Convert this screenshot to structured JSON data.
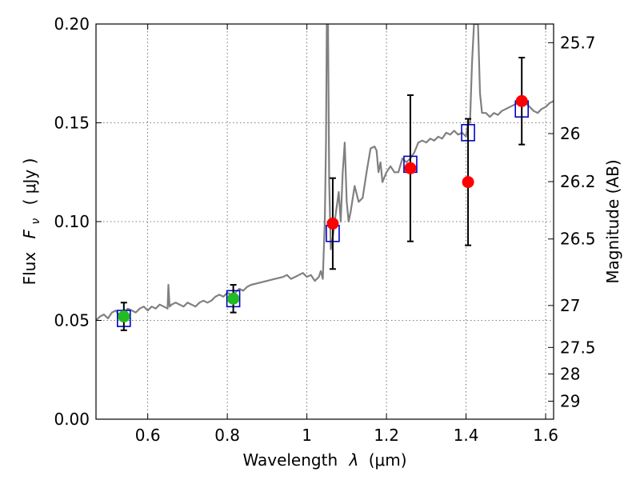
{
  "chart_data": {
    "type": "scatter",
    "title": "",
    "xlabel": "Wavelength  λ (μm)",
    "ylabel": "Flux  F_ν  ( μJy )",
    "ylabel_parts": {
      "prefix": "Flux",
      "symbol": "F",
      "subscript": "ν",
      "unit": "( μJy )"
    },
    "xlabel_parts": {
      "prefix": "Wavelength",
      "symbol": "λ",
      "unit": "(μm)"
    },
    "y2label": "Magnitude (AB)",
    "xlim": [
      0.47,
      1.62
    ],
    "ylim": [
      0.0,
      0.2
    ],
    "grid": true,
    "x_ticks": [
      {
        "value": 0.6,
        "label": "0.6"
      },
      {
        "value": 0.8,
        "label": "0.8"
      },
      {
        "value": 1.0,
        "label": "1"
      },
      {
        "value": 1.2,
        "label": "1.2"
      },
      {
        "value": 1.4,
        "label": "1.4"
      },
      {
        "value": 1.6,
        "label": "1.6"
      }
    ],
    "y_ticks": [
      {
        "value": 0.0,
        "label": "0.00"
      },
      {
        "value": 0.05,
        "label": "0.05"
      },
      {
        "value": 0.1,
        "label": "0.10"
      },
      {
        "value": 0.15,
        "label": "0.15"
      },
      {
        "value": 0.2,
        "label": "0.20"
      }
    ],
    "y2_ticks": [
      {
        "mag": 25.7,
        "label": "25.7"
      },
      {
        "mag": 26.0,
        "label": "26"
      },
      {
        "mag": 26.2,
        "label": "26.2"
      },
      {
        "mag": 26.5,
        "label": "26.5"
      },
      {
        "mag": 27.0,
        "label": "27"
      },
      {
        "mag": 27.5,
        "label": "27.5"
      },
      {
        "mag": 28.0,
        "label": "28"
      },
      {
        "mag": 29.0,
        "label": "29"
      }
    ],
    "colors": {
      "template": "#808080",
      "model_box": "#0000cc",
      "green": "#22bb22",
      "red": "#ff0000",
      "errorbar": "#000000",
      "grid": "#555555"
    },
    "series": [
      {
        "kind": "line",
        "points": [
          [
            0.47,
            0.05
          ],
          [
            0.48,
            0.052
          ],
          [
            0.49,
            0.053
          ],
          [
            0.5,
            0.051
          ],
          [
            0.51,
            0.054
          ],
          [
            0.52,
            0.055
          ],
          [
            0.53,
            0.052
          ],
          [
            0.54,
            0.054
          ],
          [
            0.55,
            0.056
          ],
          [
            0.56,
            0.055
          ],
          [
            0.57,
            0.054
          ],
          [
            0.58,
            0.056
          ],
          [
            0.59,
            0.057
          ],
          [
            0.6,
            0.055
          ],
          [
            0.61,
            0.057
          ],
          [
            0.62,
            0.056
          ],
          [
            0.63,
            0.058
          ],
          [
            0.64,
            0.057
          ],
          [
            0.65,
            0.056
          ],
          [
            0.652,
            0.068
          ],
          [
            0.655,
            0.057
          ],
          [
            0.66,
            0.058
          ],
          [
            0.67,
            0.059
          ],
          [
            0.68,
            0.058
          ],
          [
            0.69,
            0.057
          ],
          [
            0.7,
            0.059
          ],
          [
            0.71,
            0.058
          ],
          [
            0.72,
            0.057
          ],
          [
            0.73,
            0.059
          ],
          [
            0.74,
            0.06
          ],
          [
            0.75,
            0.059
          ],
          [
            0.76,
            0.06
          ],
          [
            0.77,
            0.062
          ],
          [
            0.78,
            0.063
          ],
          [
            0.79,
            0.062
          ],
          [
            0.8,
            0.064
          ],
          [
            0.81,
            0.063
          ],
          [
            0.82,
            0.064
          ],
          [
            0.83,
            0.066
          ],
          [
            0.84,
            0.065
          ],
          [
            0.85,
            0.067
          ],
          [
            0.86,
            0.068
          ],
          [
            0.88,
            0.069
          ],
          [
            0.9,
            0.07
          ],
          [
            0.92,
            0.071
          ],
          [
            0.94,
            0.072
          ],
          [
            0.95,
            0.073
          ],
          [
            0.96,
            0.071
          ],
          [
            0.97,
            0.072
          ],
          [
            0.98,
            0.073
          ],
          [
            0.99,
            0.074
          ],
          [
            1.0,
            0.072
          ],
          [
            1.01,
            0.073
          ],
          [
            1.02,
            0.07
          ],
          [
            1.03,
            0.072
          ],
          [
            1.035,
            0.075
          ],
          [
            1.04,
            0.071
          ],
          [
            1.045,
            0.1
          ],
          [
            1.048,
            0.14
          ],
          [
            1.05,
            0.2
          ],
          [
            1.053,
            0.2
          ],
          [
            1.056,
            0.12
          ],
          [
            1.06,
            0.086
          ],
          [
            1.065,
            0.092
          ],
          [
            1.07,
            0.1
          ],
          [
            1.08,
            0.115
          ],
          [
            1.085,
            0.1
          ],
          [
            1.09,
            0.125
          ],
          [
            1.095,
            0.14
          ],
          [
            1.1,
            0.11
          ],
          [
            1.105,
            0.1
          ],
          [
            1.11,
            0.105
          ],
          [
            1.12,
            0.118
          ],
          [
            1.13,
            0.11
          ],
          [
            1.14,
            0.112
          ],
          [
            1.15,
            0.125
          ],
          [
            1.16,
            0.137
          ],
          [
            1.17,
            0.138
          ],
          [
            1.175,
            0.136
          ],
          [
            1.18,
            0.125
          ],
          [
            1.185,
            0.13
          ],
          [
            1.19,
            0.12
          ],
          [
            1.2,
            0.125
          ],
          [
            1.21,
            0.128
          ],
          [
            1.22,
            0.125
          ],
          [
            1.23,
            0.125
          ],
          [
            1.24,
            0.132
          ],
          [
            1.25,
            0.13
          ],
          [
            1.26,
            0.132
          ],
          [
            1.27,
            0.135
          ],
          [
            1.28,
            0.14
          ],
          [
            1.29,
            0.141
          ],
          [
            1.3,
            0.14
          ],
          [
            1.31,
            0.142
          ],
          [
            1.32,
            0.141
          ],
          [
            1.33,
            0.143
          ],
          [
            1.34,
            0.142
          ],
          [
            1.35,
            0.145
          ],
          [
            1.36,
            0.144
          ],
          [
            1.37,
            0.146
          ],
          [
            1.38,
            0.144
          ],
          [
            1.39,
            0.145
          ],
          [
            1.4,
            0.143
          ],
          [
            1.405,
            0.15
          ],
          [
            1.41,
            0.15
          ],
          [
            1.415,
            0.18
          ],
          [
            1.42,
            0.2
          ],
          [
            1.43,
            0.2
          ],
          [
            1.435,
            0.165
          ],
          [
            1.44,
            0.155
          ],
          [
            1.45,
            0.155
          ],
          [
            1.46,
            0.153
          ],
          [
            1.47,
            0.155
          ],
          [
            1.48,
            0.154
          ],
          [
            1.49,
            0.156
          ],
          [
            1.5,
            0.157
          ],
          [
            1.51,
            0.158
          ],
          [
            1.52,
            0.159
          ],
          [
            1.53,
            0.16
          ],
          [
            1.54,
            0.161
          ],
          [
            1.55,
            0.16
          ],
          [
            1.56,
            0.158
          ],
          [
            1.57,
            0.156
          ],
          [
            1.58,
            0.155
          ],
          [
            1.59,
            0.157
          ],
          [
            1.6,
            0.158
          ],
          [
            1.61,
            0.16
          ],
          [
            1.62,
            0.161
          ]
        ]
      },
      {
        "kind": "box",
        "points": [
          [
            0.54,
            0.051
          ],
          [
            0.815,
            0.061
          ],
          [
            1.065,
            0.094
          ],
          [
            1.26,
            0.129
          ],
          [
            1.405,
            0.145
          ],
          [
            1.54,
            0.157
          ]
        ]
      },
      {
        "kind": "point-errorbar",
        "color": "green",
        "points": [
          {
            "x": 0.54,
            "y": 0.052,
            "yerr": 0.007
          },
          {
            "x": 0.815,
            "y": 0.061,
            "yerr": 0.007
          }
        ]
      },
      {
        "kind": "point-errorbar",
        "color": "red",
        "points": [
          {
            "x": 1.065,
            "y": 0.099,
            "yerr": 0.023
          },
          {
            "x": 1.26,
            "y": 0.127,
            "yerr": 0.037
          },
          {
            "x": 1.405,
            "y": 0.12,
            "yerr": 0.032
          },
          {
            "x": 1.54,
            "y": 0.161,
            "yerr": 0.022
          }
        ]
      }
    ]
  }
}
